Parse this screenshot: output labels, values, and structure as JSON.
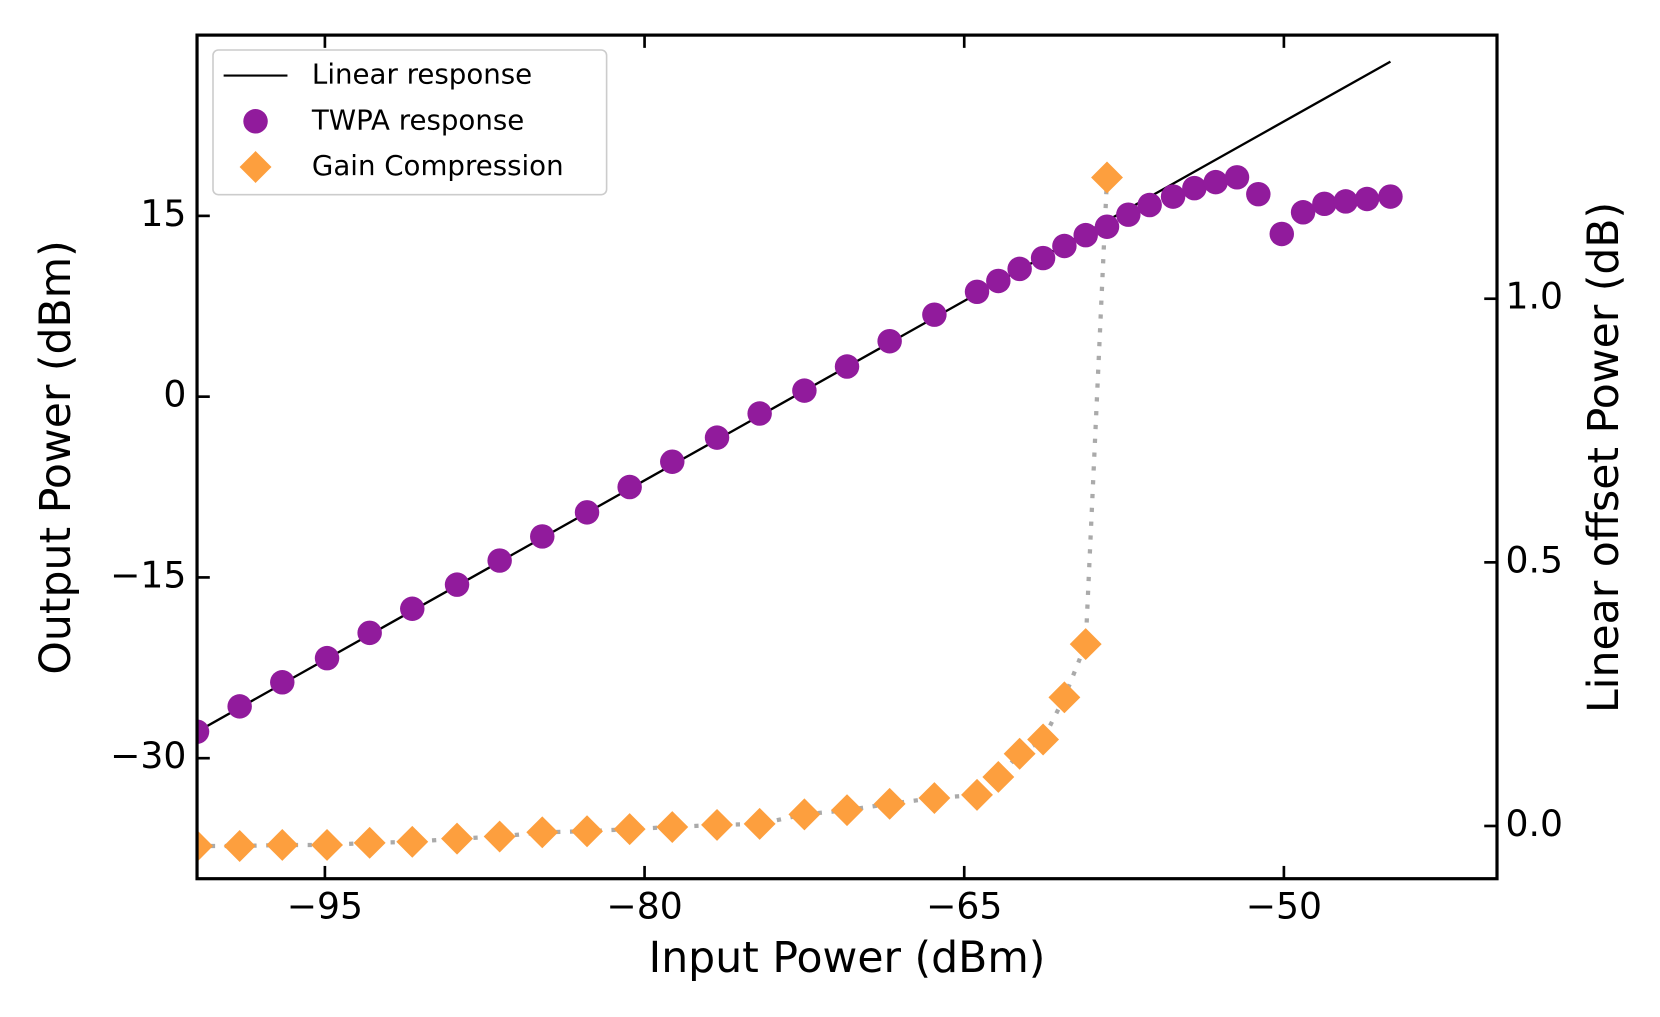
{
  "chart_data": {
    "type": "scatter",
    "xlabel": "Input Power (dBm)",
    "ylabel": "Output Power (dBm)",
    "y2label": "Linear offset Power (dB)",
    "xlim": [
      -101,
      -40
    ],
    "ylim": [
      -40,
      30
    ],
    "y2lim": [
      -0.1,
      1.5
    ],
    "xticks": [
      {
        "value": -95,
        "label": "−95"
      },
      {
        "value": -80,
        "label": "−80"
      },
      {
        "value": -65,
        "label": "−65"
      },
      {
        "value": -50,
        "label": "−50"
      }
    ],
    "yticks": [
      {
        "value": -30,
        "label": "−30"
      },
      {
        "value": -15,
        "label": "−15"
      },
      0,
      15
    ],
    "y2ticks": [
      {
        "value": 0,
        "label": "0.0"
      },
      {
        "value": 0.5,
        "label": "0.5"
      },
      {
        "value": 1,
        "label": "1.0"
      }
    ],
    "tick_direction": "in",
    "legend": "upper left",
    "series": [
      {
        "name": "Linear response",
        "type": "line",
        "color": "#000000",
        "x": [
          -101,
          -45
        ],
        "values": [
          -27.8,
          27.8
        ]
      },
      {
        "name": "TWPA response",
        "type": "scatter",
        "marker": "circle",
        "color": "#911b9c",
        "x": [
          -101.0,
          -99.0,
          -97.0,
          -94.9,
          -92.9,
          -90.9,
          -88.8,
          -86.8,
          -84.8,
          -82.7,
          -80.7,
          -78.7,
          -76.6,
          -74.6,
          -72.5,
          -70.5,
          -68.5,
          -66.4,
          -64.4,
          -63.4,
          -62.4,
          -61.3,
          -60.3,
          -59.3,
          -58.3,
          -57.3,
          -56.3,
          -55.2,
          -54.2,
          -53.2,
          -52.2,
          -51.2,
          -50.1,
          -49.1,
          -48.1,
          -47.1,
          -46.1,
          -45.0
        ],
        "values": [
          -27.8,
          -25.7,
          -23.7,
          -21.7,
          -19.6,
          -17.6,
          -15.6,
          -13.6,
          -11.6,
          -9.6,
          -7.5,
          -5.4,
          -3.4,
          -1.4,
          0.5,
          2.5,
          4.6,
          6.8,
          8.7,
          9.6,
          10.6,
          11.5,
          12.5,
          13.4,
          14.1,
          15.1,
          15.9,
          16.6,
          17.3,
          17.8,
          18.2,
          16.8,
          13.5,
          15.3,
          16.0,
          16.2,
          16.4,
          16.6
        ]
      },
      {
        "name": "Gain Compression",
        "type": "scatter",
        "marker": "diamond",
        "axis": "y2",
        "color": "#fd9f3e",
        "line_color": "#aaaaaa",
        "linestyle": "dotted",
        "x": [
          -101.0,
          -99.0,
          -97.0,
          -94.9,
          -92.9,
          -90.9,
          -88.8,
          -86.8,
          -84.8,
          -82.7,
          -80.7,
          -78.7,
          -76.6,
          -74.6,
          -72.5,
          -70.5,
          -68.5,
          -66.4,
          -64.4,
          -63.4,
          -62.4,
          -61.3,
          -60.3,
          -59.3,
          -58.3
        ],
        "values": [
          -0.038,
          -0.038,
          -0.036,
          -0.036,
          -0.032,
          -0.03,
          -0.024,
          -0.02,
          -0.012,
          -0.01,
          -0.006,
          -0.002,
          0.002,
          0.004,
          0.022,
          0.03,
          0.042,
          0.053,
          0.059,
          0.093,
          0.137,
          0.164,
          0.244,
          0.345,
          1.23
        ]
      }
    ]
  }
}
